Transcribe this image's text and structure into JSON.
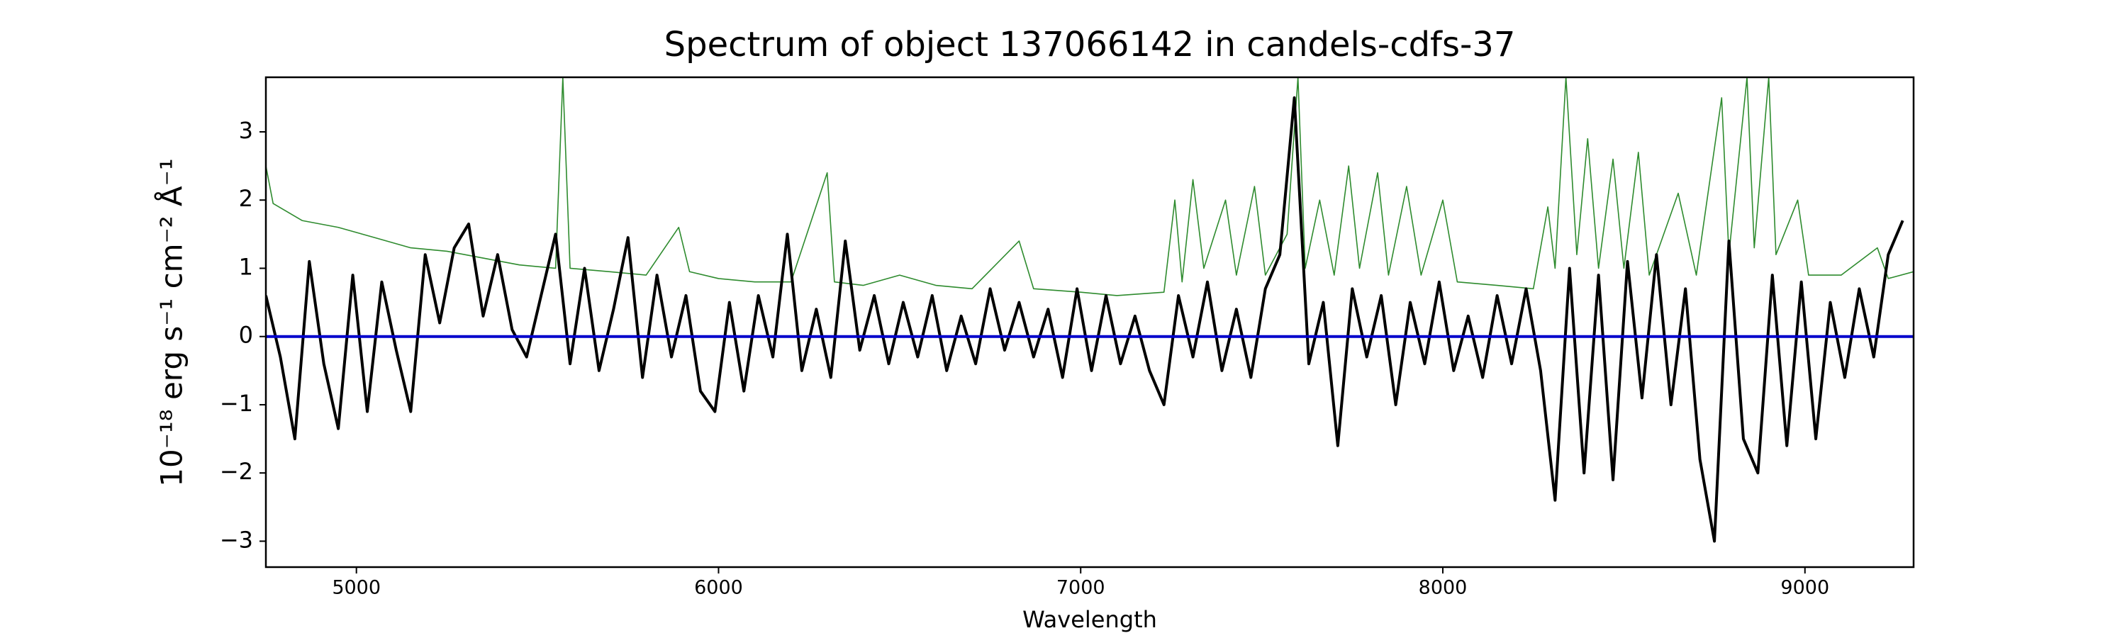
{
  "chart_data": {
    "type": "line",
    "title": "Spectrum of object 137066142 in candels-cdfs-37",
    "xlabel": "Wavelength",
    "ylabel": "10⁻¹⁸ erg s⁻¹ cm⁻² Å⁻¹",
    "xlim": [
      4750,
      9300
    ],
    "ylim": [
      -3.38,
      3.8
    ],
    "xticks": [
      5000,
      6000,
      7000,
      8000,
      9000
    ],
    "yticks": [
      {
        "value": -3,
        "label": "−3"
      },
      {
        "value": -2,
        "label": "−2"
      },
      {
        "value": -1,
        "label": "−1"
      },
      0,
      1,
      2,
      3
    ],
    "series": [
      {
        "color": "#2e8b2e",
        "width": 1.6,
        "x": [
          4750,
          4770,
          4850,
          4950,
          5050,
          5150,
          5250,
          5350,
          5450,
          5550,
          5570,
          5590,
          5700,
          5800,
          5890,
          5920,
          6000,
          6100,
          6200,
          6300,
          6320,
          6400,
          6500,
          6600,
          6700,
          6830,
          6870,
          7000,
          7100,
          7230,
          7260,
          7280,
          7310,
          7340,
          7400,
          7430,
          7480,
          7510,
          7570,
          7600,
          7620,
          7660,
          7700,
          7740,
          7770,
          7820,
          7850,
          7900,
          7940,
          8000,
          8040,
          8150,
          8250,
          8290,
          8310,
          8340,
          8370,
          8400,
          8430,
          8470,
          8500,
          8540,
          8570,
          8650,
          8700,
          8770,
          8790,
          8840,
          8860,
          8900,
          8920,
          8980,
          9010,
          9100,
          9200,
          9230,
          9300
        ],
        "values": [
          2.5,
          1.95,
          1.7,
          1.6,
          1.45,
          1.3,
          1.25,
          1.15,
          1.05,
          1.0,
          3.8,
          1.0,
          0.95,
          0.9,
          1.6,
          0.95,
          0.85,
          0.8,
          0.8,
          2.4,
          0.8,
          0.75,
          0.9,
          0.75,
          0.7,
          1.4,
          0.7,
          0.65,
          0.6,
          0.65,
          2.0,
          0.8,
          2.3,
          1.0,
          2.0,
          0.9,
          2.2,
          0.9,
          1.5,
          3.8,
          1.0,
          2.0,
          0.9,
          2.5,
          1.0,
          2.4,
          0.9,
          2.2,
          0.9,
          2.0,
          0.8,
          0.75,
          0.7,
          1.9,
          1.0,
          3.8,
          1.2,
          2.9,
          1.0,
          2.6,
          1.0,
          2.7,
          0.9,
          2.1,
          0.9,
          3.5,
          1.2,
          3.8,
          1.3,
          3.8,
          1.2,
          2.0,
          0.9,
          0.9,
          1.3,
          0.85,
          0.95
        ]
      },
      {
        "color": "#000000",
        "width": 4,
        "x": [
          4750,
          4790,
          4830,
          4870,
          4910,
          4950,
          4990,
          5030,
          5070,
          5110,
          5150,
          5190,
          5230,
          5270,
          5310,
          5350,
          5390,
          5430,
          5470,
          5510,
          5550,
          5590,
          5630,
          5670,
          5710,
          5750,
          5790,
          5830,
          5870,
          5910,
          5950,
          5990,
          6030,
          6070,
          6110,
          6150,
          6190,
          6230,
          6270,
          6310,
          6350,
          6390,
          6430,
          6470,
          6510,
          6550,
          6590,
          6630,
          6670,
          6710,
          6750,
          6790,
          6830,
          6870,
          6910,
          6950,
          6990,
          7030,
          7070,
          7110,
          7150,
          7190,
          7230,
          7270,
          7310,
          7350,
          7390,
          7430,
          7470,
          7510,
          7550,
          7590,
          7630,
          7670,
          7710,
          7750,
          7790,
          7830,
          7870,
          7910,
          7950,
          7990,
          8030,
          8070,
          8110,
          8150,
          8190,
          8230,
          8270,
          8310,
          8350,
          8390,
          8430,
          8470,
          8510,
          8550,
          8590,
          8630,
          8670,
          8710,
          8750,
          8790,
          8830,
          8870,
          8910,
          8950,
          8990,
          9030,
          9070,
          9110,
          9150,
          9190,
          9230,
          9270
        ],
        "values": [
          0.6,
          -0.3,
          -1.5,
          1.1,
          -0.4,
          -1.35,
          0.9,
          -1.1,
          0.8,
          -0.2,
          -1.1,
          1.2,
          0.2,
          1.3,
          1.65,
          0.3,
          1.2,
          0.1,
          -0.3,
          0.6,
          1.5,
          -0.4,
          1.0,
          -0.5,
          0.4,
          1.45,
          -0.6,
          0.9,
          -0.3,
          0.6,
          -0.8,
          -1.1,
          0.5,
          -0.8,
          0.6,
          -0.3,
          1.5,
          -0.5,
          0.4,
          -0.6,
          1.4,
          -0.2,
          0.6,
          -0.4,
          0.5,
          -0.3,
          0.6,
          -0.5,
          0.3,
          -0.4,
          0.7,
          -0.2,
          0.5,
          -0.3,
          0.4,
          -0.6,
          0.7,
          -0.5,
          0.6,
          -0.4,
          0.3,
          -0.5,
          -1.0,
          0.6,
          -0.3,
          0.8,
          -0.5,
          0.4,
          -0.6,
          0.7,
          1.2,
          3.5,
          -0.4,
          0.5,
          -1.6,
          0.7,
          -0.3,
          0.6,
          -1.0,
          0.5,
          -0.4,
          0.8,
          -0.5,
          0.3,
          -0.6,
          0.6,
          -0.4,
          0.7,
          -0.5,
          -2.4,
          1.0,
          -2.0,
          0.9,
          -2.1,
          1.1,
          -0.9,
          1.2,
          -1.0,
          0.7,
          -1.8,
          -3.0,
          1.4,
          -1.5,
          -2.0,
          0.9,
          -1.6,
          0.8,
          -1.5,
          0.5,
          -0.6,
          0.7,
          -0.3,
          1.2,
          1.7
        ]
      },
      {
        "color": "#0000cc",
        "width": 4,
        "x": [
          4750,
          9300
        ],
        "values": [
          0,
          0
        ]
      }
    ]
  }
}
